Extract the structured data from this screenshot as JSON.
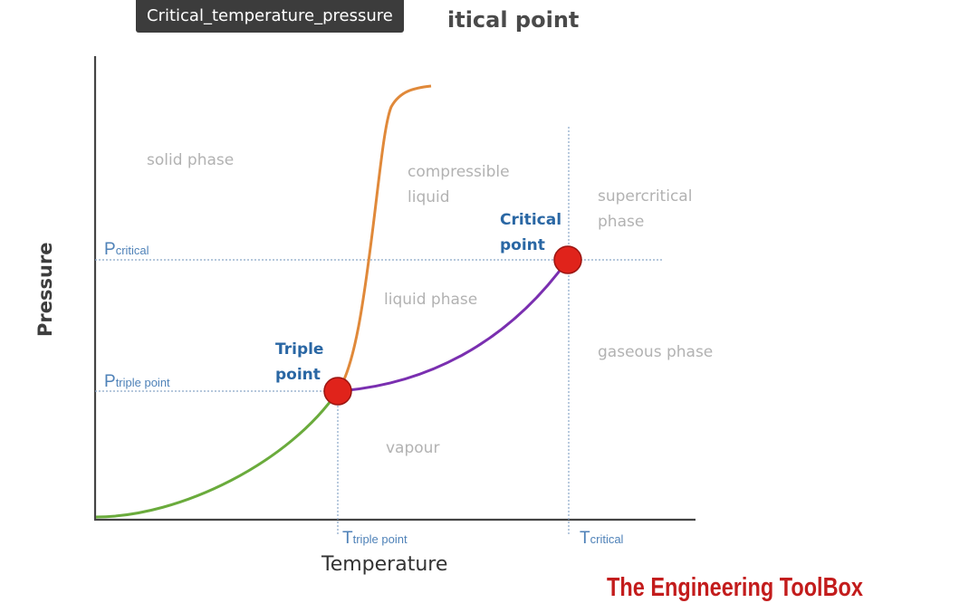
{
  "tooltip": {
    "text": "Critical_temperature_pressure"
  },
  "diagram": {
    "title_visible": "itical point",
    "axes": {
      "x_label": "Temperature",
      "y_label": "Pressure"
    },
    "regions": {
      "solid": "solid phase",
      "compressible_line1": "compressible",
      "compressible_line2": "liquid",
      "supercritical_line1": "supercritical",
      "supercritical_line2": "phase",
      "liquid": "liquid phase",
      "gaseous": "gaseous phase",
      "vapour": "vapour"
    },
    "points": {
      "triple_line1": "Triple",
      "triple_line2": "point",
      "critical_line1": "Critical",
      "critical_line2": "point"
    },
    "reference_lines": {
      "p_critical_main": "P",
      "p_critical_sub": "critical",
      "p_triple_main": "P",
      "p_triple_sub": "triple point",
      "t_triple_main": "T",
      "t_triple_sub": "triple point",
      "t_critical_main": "T",
      "t_critical_sub": "critical"
    },
    "curve_colors": {
      "sublimation": "#6aab3c",
      "melting": "#e0893a",
      "vaporization": "#7a2fb0",
      "point_marker": "#e0231b",
      "guide_line": "#8aa6c8"
    }
  },
  "branding": {
    "text": "The Engineering ToolBox",
    "color": "#c31c1c"
  }
}
